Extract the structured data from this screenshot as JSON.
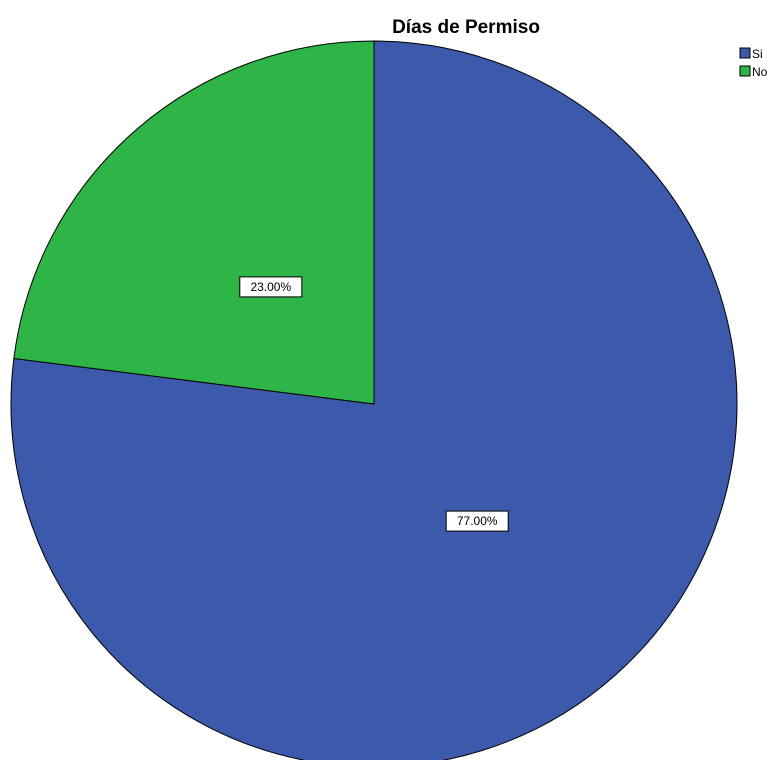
{
  "chart_data": {
    "type": "pie",
    "title": "Días de Permiso",
    "categories": [
      "Si",
      "No"
    ],
    "values": [
      77.0,
      23.0
    ],
    "data_labels": [
      "77.00%",
      "23.00%"
    ],
    "colors": [
      "#3d59ab",
      "#2fb547"
    ],
    "start_angle_deg": 0,
    "direction": "clockwise",
    "legend_position": "top-right"
  }
}
